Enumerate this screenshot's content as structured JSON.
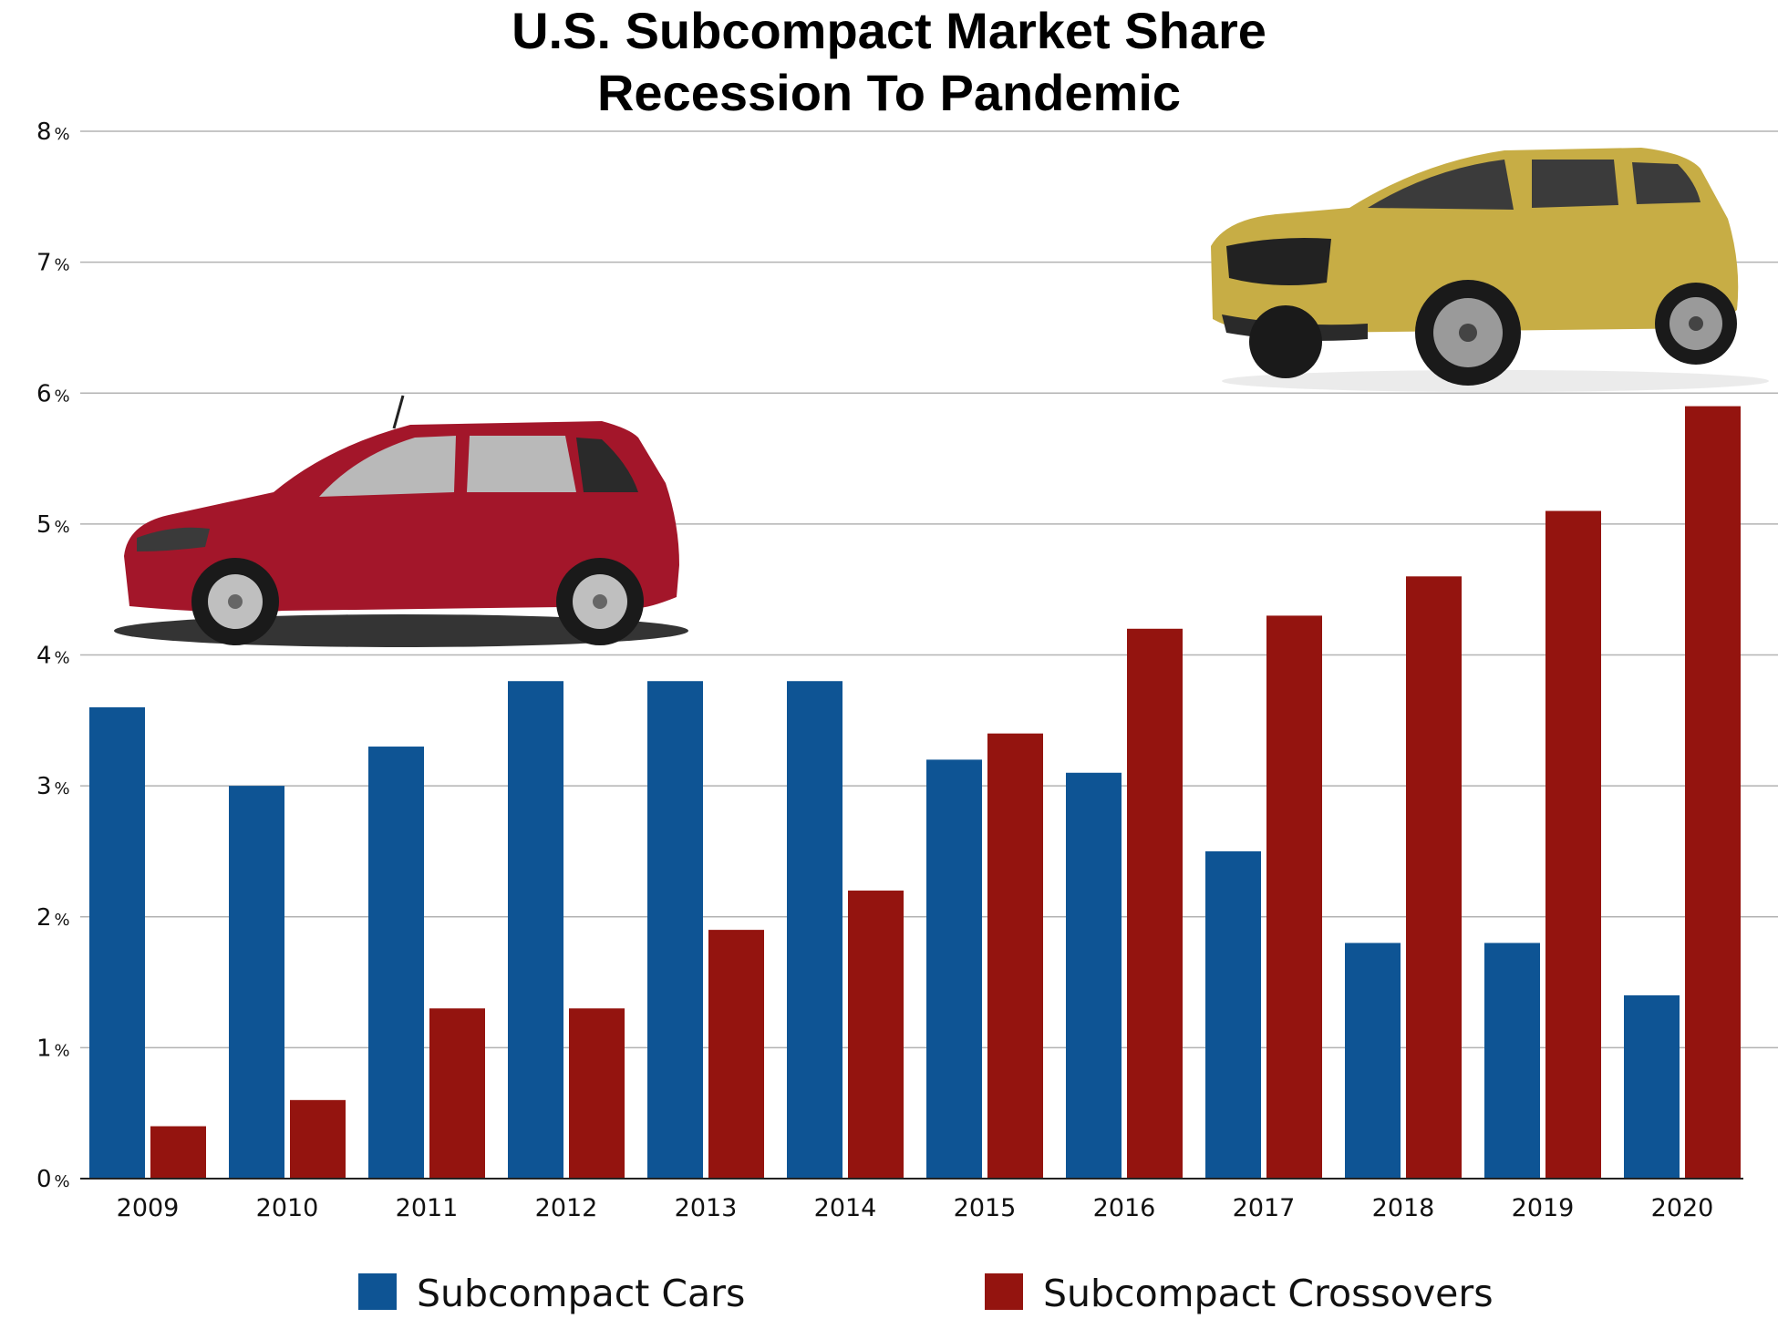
{
  "chart_data": {
    "type": "bar",
    "title": "U.S. Subcompact Market Share",
    "subtitle": "Recession To Pandemic",
    "categories": [
      "2009",
      "2010",
      "2011",
      "2012",
      "2013",
      "2014",
      "2015",
      "2016",
      "2017",
      "2018",
      "2019",
      "2020"
    ],
    "series": [
      {
        "name": "Subcompact Cars",
        "color": "#0e5494",
        "values": [
          3.6,
          3.0,
          3.3,
          3.8,
          3.8,
          3.8,
          3.2,
          3.1,
          2.5,
          1.8,
          1.8,
          1.4
        ]
      },
      {
        "name": "Subcompact Crossovers",
        "color": "#94140f",
        "values": [
          0.4,
          0.6,
          1.3,
          1.3,
          1.9,
          2.2,
          3.4,
          4.2,
          4.3,
          4.6,
          5.1,
          5.9
        ]
      }
    ],
    "ylim": [
      0,
      8
    ],
    "yticks": [
      0,
      1,
      2,
      3,
      4,
      5,
      6,
      7,
      8
    ],
    "ytick_suffix": "%",
    "grid": true,
    "legend_position": "bottom",
    "xlabel": "",
    "ylabel": ""
  },
  "images": {
    "hatchback": "red-hatchback-car-illustration",
    "suv": "yellow-crossover-suv-illustration"
  }
}
